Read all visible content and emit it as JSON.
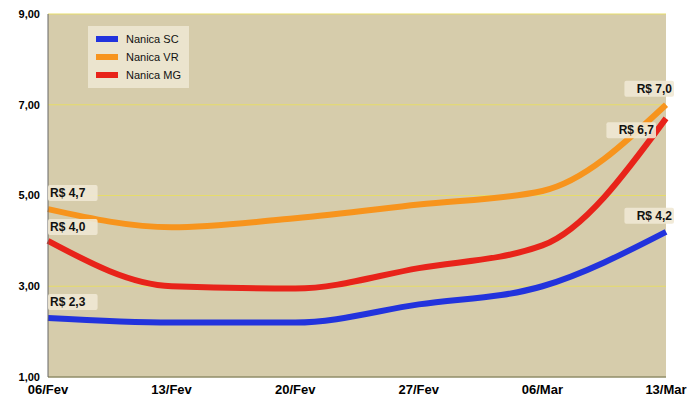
{
  "chart_data": {
    "type": "line",
    "categories": [
      "06/Fev",
      "13/Fev",
      "20/Fev",
      "27/Fev",
      "06/Mar",
      "13/Mar"
    ],
    "series": [
      {
        "name": "Nanica SC",
        "color": "#2233dd",
        "values": [
          2.3,
          2.2,
          2.2,
          2.6,
          3.0,
          4.2
        ],
        "value_labels": [
          "R$ 2,3",
          null,
          null,
          null,
          null,
          "R$ 4,2"
        ]
      },
      {
        "name": "Nanica VR",
        "color": "#f7941d",
        "values": [
          4.7,
          4.3,
          4.5,
          4.8,
          5.1,
          7.0
        ],
        "value_labels": [
          "R$ 4,7",
          null,
          null,
          null,
          null,
          "R$ 7,0"
        ]
      },
      {
        "name": "Nanica MG",
        "color": "#e8231a",
        "values": [
          4.0,
          3.0,
          2.95,
          3.4,
          3.9,
          6.7
        ],
        "value_labels": [
          "R$ 4,0",
          null,
          null,
          null,
          null,
          "R$ 6,7"
        ]
      }
    ],
    "ylim": [
      1,
      9
    ],
    "yticks": [
      {
        "value": 1,
        "label": "1,00"
      },
      {
        "value": 3,
        "label": "3,00"
      },
      {
        "value": 5,
        "label": "5,00"
      },
      {
        "value": 7,
        "label": "7,00"
      },
      {
        "value": 9,
        "label": "9,00"
      }
    ],
    "grid": true,
    "legend": "upper left",
    "data_labels": true
  }
}
